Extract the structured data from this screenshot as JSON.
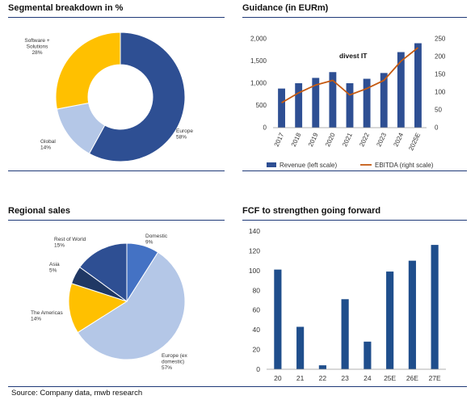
{
  "panels": {
    "segmental": {
      "title": "Segmental breakdown in %"
    },
    "guidance": {
      "title": "Guidance (in EURm)"
    },
    "regional": {
      "title": "Regional sales"
    },
    "fcf": {
      "title": "FCF to strengthen going forward"
    }
  },
  "source": "Source: Company data, mwb research",
  "colors": {
    "navy": "#2e4f93",
    "gold": "#ffc000",
    "lightblue": "#b4c7e7",
    "midblue": "#4472c4",
    "darknavy": "#203864",
    "ebitda": "#c55a11",
    "rule": "#1f3a78"
  },
  "chart_data": [
    {
      "type": "pie",
      "subtype": "donut",
      "slices": [
        {
          "name": "Europe",
          "label": "Europe",
          "value_label": "58%",
          "value": 58,
          "color": "#2e4f93"
        },
        {
          "name": "Global",
          "label": "Global",
          "value_label": "14%",
          "value": 14,
          "color": "#b4c7e7"
        },
        {
          "name": "Software + Solutions",
          "label": "Software +\nSolutions",
          "value_label": "28%",
          "value": 28,
          "color": "#ffc000"
        }
      ]
    },
    {
      "type": "bar",
      "combo": "bar+line",
      "categories": [
        "2017",
        "2018",
        "2019",
        "2020",
        "2021",
        "2022",
        "2023",
        "2024",
        "2025E"
      ],
      "series": [
        {
          "name": "Revenue (left scale)",
          "type": "bar",
          "axis": "left",
          "color": "#2e4f93",
          "values": [
            880,
            1000,
            1120,
            1250,
            1000,
            1100,
            1230,
            1700,
            1900
          ]
        },
        {
          "name": "EBITDA (right scale)",
          "type": "line",
          "axis": "right",
          "color": "#c55a11",
          "values": [
            70,
            98,
            120,
            133,
            92,
            110,
            133,
            187,
            225
          ]
        }
      ],
      "ylim_left": [
        0,
        2000
      ],
      "yticks_left": [
        "0",
        "500",
        "1,000",
        "1,500",
        "2,000"
      ],
      "yticks_left_values": [
        0,
        500,
        1000,
        1500,
        2000
      ],
      "ylim_right": [
        0,
        250
      ],
      "yticks_right": [
        "0",
        "50",
        "100",
        "150",
        "200",
        "250"
      ],
      "yticks_right_values": [
        0,
        50,
        100,
        150,
        200,
        250
      ],
      "annotation": "divest IT",
      "legend": "bottom"
    },
    {
      "type": "pie",
      "slices": [
        {
          "name": "Domestic",
          "label": "Domestic",
          "value_label": "9%",
          "value": 9,
          "color": "#4472c4"
        },
        {
          "name": "Europe (ex domestic)",
          "label": "Europe (ex\ndomestic)",
          "value_label": "57%",
          "value": 57,
          "color": "#b4c7e7"
        },
        {
          "name": "The Americas",
          "label": "The Americas",
          "value_label": "14%",
          "value": 14,
          "color": "#ffc000"
        },
        {
          "name": "Asia",
          "label": "Asia",
          "value_label": "5%",
          "value": 5,
          "color": "#203864"
        },
        {
          "name": "Rest of World",
          "label": "Rest of World",
          "value_label": "15%",
          "value": 15,
          "color": "#2e4f93"
        }
      ]
    },
    {
      "type": "bar",
      "categories": [
        "20",
        "21",
        "22",
        "23",
        "24",
        "25E",
        "26E",
        "27E"
      ],
      "values": [
        101,
        43,
        4,
        71,
        28,
        99,
        110,
        126
      ],
      "ylim": [
        0,
        140
      ],
      "yticks": [
        "0",
        "20",
        "40",
        "60",
        "80",
        "100",
        "120",
        "140"
      ],
      "yticks_values": [
        0,
        20,
        40,
        60,
        80,
        100,
        120,
        140
      ],
      "grid": false,
      "color": "#1f4e8c"
    }
  ]
}
